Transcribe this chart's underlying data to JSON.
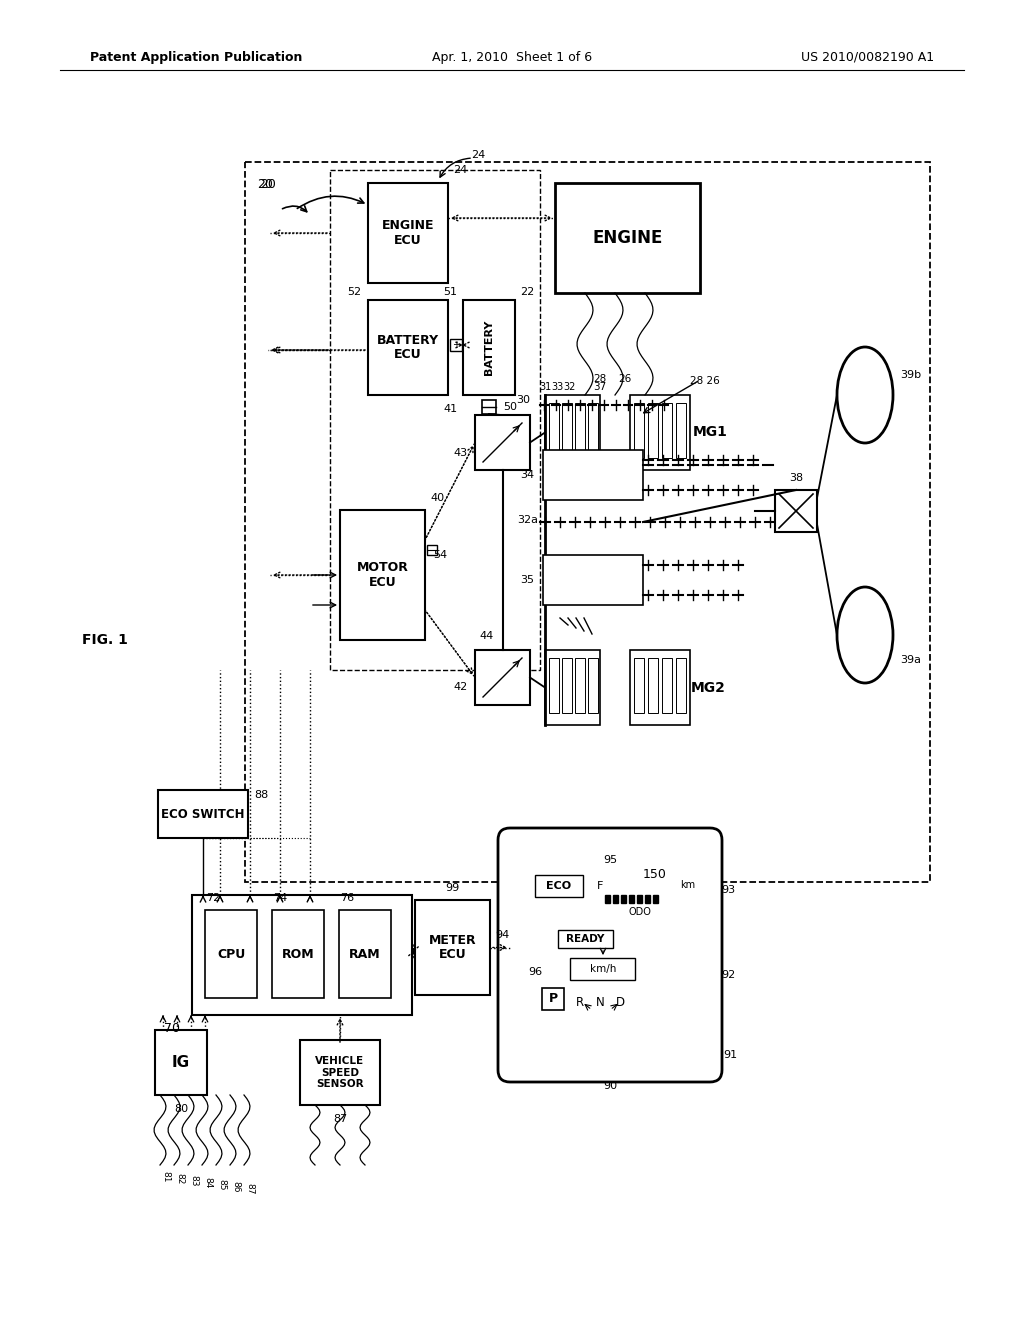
{
  "header_left": "Patent Application Publication",
  "header_center": "Apr. 1, 2010  Sheet 1 of 6",
  "header_right": "US 2010/0082190 A1",
  "figure_label": "FIG. 1",
  "bg_color": "#ffffff",
  "lc": "#000000"
}
